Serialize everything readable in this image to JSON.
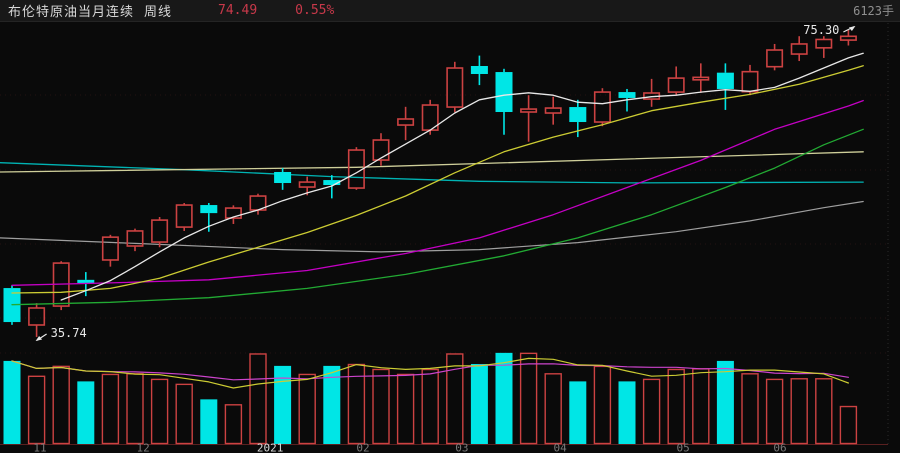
{
  "header": {
    "title": "布伦特原油当月连续",
    "period": "周线",
    "price": "74.49",
    "change_percent": "0.55%",
    "volume_label": "6123手"
  },
  "colors": {
    "background": "#0a0a0a",
    "header_bg": "#181818",
    "up": "#cc4242",
    "down": "#00e6e6",
    "ma_white": "#e8e8e8",
    "ma_yellow": "#cccc33",
    "ma_magenta": "#c400c4",
    "ma_green": "#22aa33",
    "long_yellow": "#cfcf9a",
    "long_cyan": "#00b3b3",
    "long_gray": "#9f9f9f",
    "vol_ma_yellow": "#cccc33",
    "vol_ma_magenta": "#cc44cc",
    "grid": "#241212",
    "baseline": "#5a2020",
    "axis_label": "#7a7a7a",
    "axis_label_highlight": "#d8d8d8",
    "annotation_text": "#e8e8e8"
  },
  "chart_data": {
    "type": "candlestick+volume",
    "title": "布伦特原油当月连续 周线",
    "timeframe": "weekly",
    "price_range_visible": [
      35.74,
      75.3
    ],
    "volume_unit": "手",
    "ohlcv_format": [
      "open",
      "high",
      "low",
      "close",
      "volume"
    ],
    "candles": [
      [
        42.04,
        42.4,
        37.3,
        37.66,
        13400
      ],
      [
        37.28,
        40.1,
        35.74,
        39.47,
        11000
      ],
      [
        39.72,
        45.5,
        39.2,
        45.26,
        12600
      ],
      [
        43.1,
        44.1,
        41.0,
        42.7,
        10100
      ],
      [
        45.66,
        48.9,
        44.8,
        48.6,
        11300
      ],
      [
        47.46,
        49.7,
        46.8,
        49.4,
        11400
      ],
      [
        47.97,
        51.2,
        47.3,
        50.8,
        10500
      ],
      [
        49.9,
        53.0,
        49.4,
        52.74,
        9700
      ],
      [
        52.74,
        53.0,
        49.3,
        51.7,
        7200
      ],
      [
        51.06,
        52.7,
        50.3,
        52.35,
        6400
      ],
      [
        52.1,
        54.2,
        51.5,
        53.9,
        14600
      ],
      [
        57.0,
        57.5,
        54.7,
        55.58,
        12600
      ],
      [
        55.06,
        56.4,
        54.0,
        55.7,
        11300
      ],
      [
        55.96,
        56.6,
        53.6,
        55.32,
        12600
      ],
      [
        54.93,
        60.2,
        54.7,
        59.83,
        12900
      ],
      [
        58.54,
        62.0,
        57.8,
        61.12,
        12100
      ],
      [
        63.05,
        65.4,
        61.1,
        63.83,
        11300
      ],
      [
        62.4,
        66.3,
        61.8,
        65.63,
        12100
      ],
      [
        65.37,
        71.2,
        64.7,
        70.4,
        14600
      ],
      [
        70.66,
        72.0,
        68.2,
        69.63,
        12900
      ],
      [
        69.88,
        70.3,
        61.8,
        64.73,
        14700
      ],
      [
        64.73,
        66.9,
        60.9,
        65.11,
        14700
      ],
      [
        64.6,
        66.7,
        63.1,
        65.24,
        11400
      ],
      [
        65.37,
        66.3,
        61.5,
        63.44,
        10100
      ],
      [
        63.44,
        67.8,
        62.9,
        67.3,
        12600
      ],
      [
        67.3,
        67.7,
        64.8,
        66.54,
        10100
      ],
      [
        66.4,
        69.0,
        65.4,
        67.18,
        10500
      ],
      [
        67.3,
        70.6,
        66.9,
        69.1,
        12100
      ],
      [
        68.9,
        71.0,
        67.2,
        69.2,
        12200
      ],
      [
        69.8,
        71.0,
        65.0,
        67.7,
        13400
      ],
      [
        67.35,
        70.8,
        66.9,
        69.93,
        11400
      ],
      [
        70.57,
        73.5,
        70.1,
        72.72,
        10500
      ],
      [
        72.2,
        74.5,
        71.3,
        73.5,
        10600
      ],
      [
        73.0,
        74.5,
        71.7,
        74.08,
        10600
      ],
      [
        74.0,
        75.3,
        73.3,
        74.49,
        6123
      ]
    ],
    "moving_averages": {
      "ma_white": [
        [
          3,
          40.5
        ],
        [
          4,
          41.7
        ],
        [
          5,
          43.0
        ],
        [
          6,
          44.8
        ],
        [
          7,
          46.7
        ],
        [
          8,
          48.5
        ],
        [
          9,
          50.0
        ],
        [
          10,
          51.2
        ],
        [
          11,
          52.1
        ],
        [
          12,
          53.3
        ],
        [
          13,
          54.3
        ],
        [
          14,
          55.2
        ],
        [
          15,
          56.9
        ],
        [
          16,
          58.8
        ],
        [
          17,
          60.6
        ],
        [
          18,
          62.4
        ],
        [
          19,
          64.6
        ],
        [
          20,
          66.3
        ],
        [
          21,
          66.9
        ],
        [
          22,
          67.2
        ],
        [
          23,
          66.9
        ],
        [
          24,
          66.0
        ],
        [
          25,
          65.8
        ],
        [
          26,
          66.3
        ],
        [
          27,
          66.7
        ],
        [
          28,
          66.9
        ],
        [
          29,
          67.3
        ],
        [
          30,
          67.6
        ],
        [
          31,
          67.4
        ],
        [
          32,
          67.9
        ],
        [
          33,
          69.1
        ],
        [
          34,
          70.4
        ],
        [
          35,
          71.7
        ],
        [
          35.6,
          72.3
        ]
      ],
      "ma_yellow": [
        [
          1,
          41.4
        ],
        [
          3,
          41.5
        ],
        [
          5,
          42.0
        ],
        [
          7,
          43.3
        ],
        [
          9,
          45.4
        ],
        [
          11,
          47.3
        ],
        [
          13,
          49.2
        ],
        [
          15,
          51.4
        ],
        [
          17,
          53.9
        ],
        [
          19,
          56.9
        ],
        [
          21,
          59.6
        ],
        [
          23,
          61.5
        ],
        [
          25,
          63.1
        ],
        [
          27,
          64.9
        ],
        [
          29,
          66.0
        ],
        [
          31,
          67.0
        ],
        [
          33,
          68.3
        ],
        [
          35,
          70.1
        ],
        [
          35.6,
          70.7
        ]
      ],
      "ma_magenta": [
        [
          1,
          42.4
        ],
        [
          5,
          42.7
        ],
        [
          9,
          43.1
        ],
        [
          13,
          44.3
        ],
        [
          17,
          46.5
        ],
        [
          20,
          48.5
        ],
        [
          23,
          51.5
        ],
        [
          26,
          55.0
        ],
        [
          29,
          58.5
        ],
        [
          32,
          62.5
        ],
        [
          35,
          65.5
        ],
        [
          35.6,
          66.2
        ]
      ],
      "ma_green": [
        [
          1,
          39.9
        ],
        [
          5,
          40.2
        ],
        [
          9,
          40.8
        ],
        [
          13,
          42.0
        ],
        [
          17,
          43.8
        ],
        [
          21,
          46.2
        ],
        [
          24,
          48.5
        ],
        [
          27,
          51.5
        ],
        [
          30,
          55.0
        ],
        [
          32,
          57.5
        ],
        [
          34,
          60.5
        ],
        [
          35.6,
          62.5
        ]
      ],
      "long_yellow": [
        [
          0.5,
          57.0
        ],
        [
          15,
          57.6
        ],
        [
          35.6,
          59.6
        ]
      ],
      "long_cyan": [
        [
          0.5,
          58.2
        ],
        [
          8,
          57.3
        ],
        [
          14,
          56.4
        ],
        [
          20,
          55.8
        ],
        [
          26,
          55.6
        ],
        [
          35.6,
          55.7
        ]
      ],
      "long_gray": [
        [
          0.5,
          48.5
        ],
        [
          6,
          47.8
        ],
        [
          12,
          47.0
        ],
        [
          16,
          46.7
        ],
        [
          20,
          47.0
        ],
        [
          24,
          47.9
        ],
        [
          28,
          49.3
        ],
        [
          31,
          50.7
        ],
        [
          34,
          52.4
        ],
        [
          35.6,
          53.2
        ]
      ]
    },
    "volume_ma_periods": {
      "yellow": 5,
      "magenta": 10
    },
    "x_axis_months": [
      {
        "label": "11",
        "at_candle": 2.14,
        "highlight": false
      },
      {
        "label": "12",
        "at_candle": 6.33,
        "highlight": false
      },
      {
        "label": "2021",
        "at_candle": 11.49,
        "highlight": true
      },
      {
        "label": "02",
        "at_candle": 15.27,
        "highlight": false
      },
      {
        "label": "03",
        "at_candle": 19.29,
        "highlight": false
      },
      {
        "label": "04",
        "at_candle": 23.28,
        "highlight": false
      },
      {
        "label": "05",
        "at_candle": 28.28,
        "highlight": false
      },
      {
        "label": "06",
        "at_candle": 32.22,
        "highlight": false
      }
    ],
    "annotations": {
      "low": {
        "text": "35.74",
        "at_candle": 2,
        "price": 35.74
      },
      "high": {
        "text": "75.30",
        "at_candle": 35,
        "price": 75.3
      }
    }
  }
}
